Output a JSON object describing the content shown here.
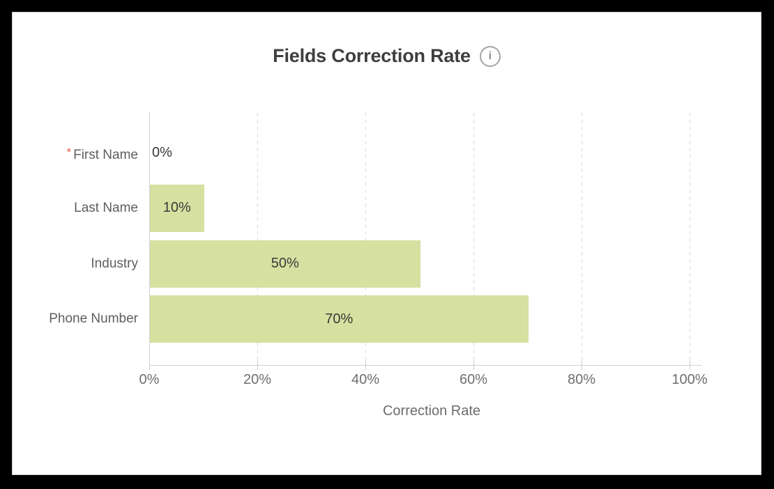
{
  "window": {
    "frame_color": "#000000",
    "card_background": "#ffffff"
  },
  "header": {
    "title": "Fields Correction Rate",
    "info_icon_glyph": "i"
  },
  "chart_data": {
    "type": "bar",
    "orientation": "horizontal",
    "title": "Fields Correction Rate",
    "xlabel": "Correction Rate",
    "xlim": [
      0,
      100
    ],
    "x_ticks": [
      0,
      20,
      40,
      60,
      80,
      100
    ],
    "x_tick_labels": [
      "0%",
      "20%",
      "40%",
      "60%",
      "80%",
      "100%"
    ],
    "grid": "vertical-dashed",
    "legend": "none",
    "bar_color": "#d6e0a0",
    "categories": [
      "First Name",
      "Last Name",
      "Industry",
      "Phone Number"
    ],
    "required_flags": [
      true,
      false,
      false,
      false
    ],
    "values": [
      0,
      10,
      50,
      70
    ],
    "value_labels": [
      "0%",
      "10%",
      "50%",
      "70%"
    ]
  },
  "colors": {
    "bar": "#d6e0a0",
    "required_asterisk": "#e06154",
    "title_text": "#3e3e3e",
    "category_text": "#5e5e5e",
    "tick_text": "#6e6e6e",
    "value_text": "#3a3a3a",
    "axis_line": "#d2d2d2",
    "gridline": "#dbdbdb"
  }
}
